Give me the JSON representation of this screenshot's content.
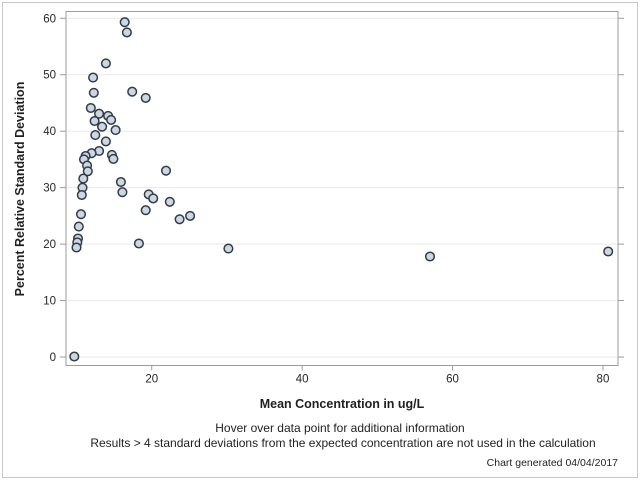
{
  "chart_data": {
    "type": "scatter",
    "title": "",
    "xlabel": "Mean Concentration in ug/L",
    "ylabel": "Percent Relative Standard Deviation",
    "xlim": [
      8.6,
      82.0
    ],
    "ylim": [
      -1.5,
      61.2
    ],
    "x_ticks": [
      20,
      40,
      60,
      80
    ],
    "y_ticks": [
      0,
      10,
      20,
      30,
      40,
      50,
      60
    ],
    "grid": "horizontal",
    "legend": "none",
    "points": [
      [
        16.4,
        59.3
      ],
      [
        16.7,
        57.5
      ],
      [
        13.9,
        52.0
      ],
      [
        12.2,
        49.5
      ],
      [
        12.3,
        46.8
      ],
      [
        17.4,
        47.0
      ],
      [
        19.2,
        45.9
      ],
      [
        11.9,
        44.1
      ],
      [
        13.0,
        43.1
      ],
      [
        14.2,
        42.7
      ],
      [
        14.6,
        42.0
      ],
      [
        12.4,
        41.8
      ],
      [
        13.4,
        40.8
      ],
      [
        15.2,
        40.2
      ],
      [
        12.5,
        39.3
      ],
      [
        13.9,
        38.2
      ],
      [
        13.0,
        36.5
      ],
      [
        12.0,
        36.1
      ],
      [
        14.7,
        35.8
      ],
      [
        11.2,
        35.6
      ],
      [
        14.9,
        35.1
      ],
      [
        11.0,
        35.0
      ],
      [
        11.4,
        33.9
      ],
      [
        21.9,
        33.0
      ],
      [
        11.5,
        32.9
      ],
      [
        10.9,
        31.6
      ],
      [
        15.9,
        31.0
      ],
      [
        10.8,
        30.0
      ],
      [
        16.1,
        29.2
      ],
      [
        19.6,
        28.8
      ],
      [
        10.7,
        28.7
      ],
      [
        20.2,
        28.1
      ],
      [
        22.4,
        27.5
      ],
      [
        19.2,
        26.0
      ],
      [
        10.6,
        25.3
      ],
      [
        25.1,
        25.0
      ],
      [
        23.7,
        24.4
      ],
      [
        10.3,
        23.1
      ],
      [
        10.2,
        21.0
      ],
      [
        10.1,
        20.3
      ],
      [
        18.3,
        20.1
      ],
      [
        10.0,
        19.4
      ],
      [
        30.2,
        19.2
      ],
      [
        80.7,
        18.7
      ],
      [
        57.0,
        17.8
      ],
      [
        9.7,
        0.1
      ]
    ]
  },
  "footnotes": {
    "hover": "Hover over data point for additional information",
    "exclusion": "Results > 4 standard deviations from the expected concentration are not used in the calculation",
    "generated": "Chart generated 04/04/2017"
  },
  "colors": {
    "marker_fill": "#ccd7e5",
    "marker_stroke": "#333b44",
    "grid": "#e9e9e9",
    "axis": "#9b9b9b",
    "text": "#262626",
    "frame": "#c9c9c9",
    "background": "#ffffff"
  }
}
